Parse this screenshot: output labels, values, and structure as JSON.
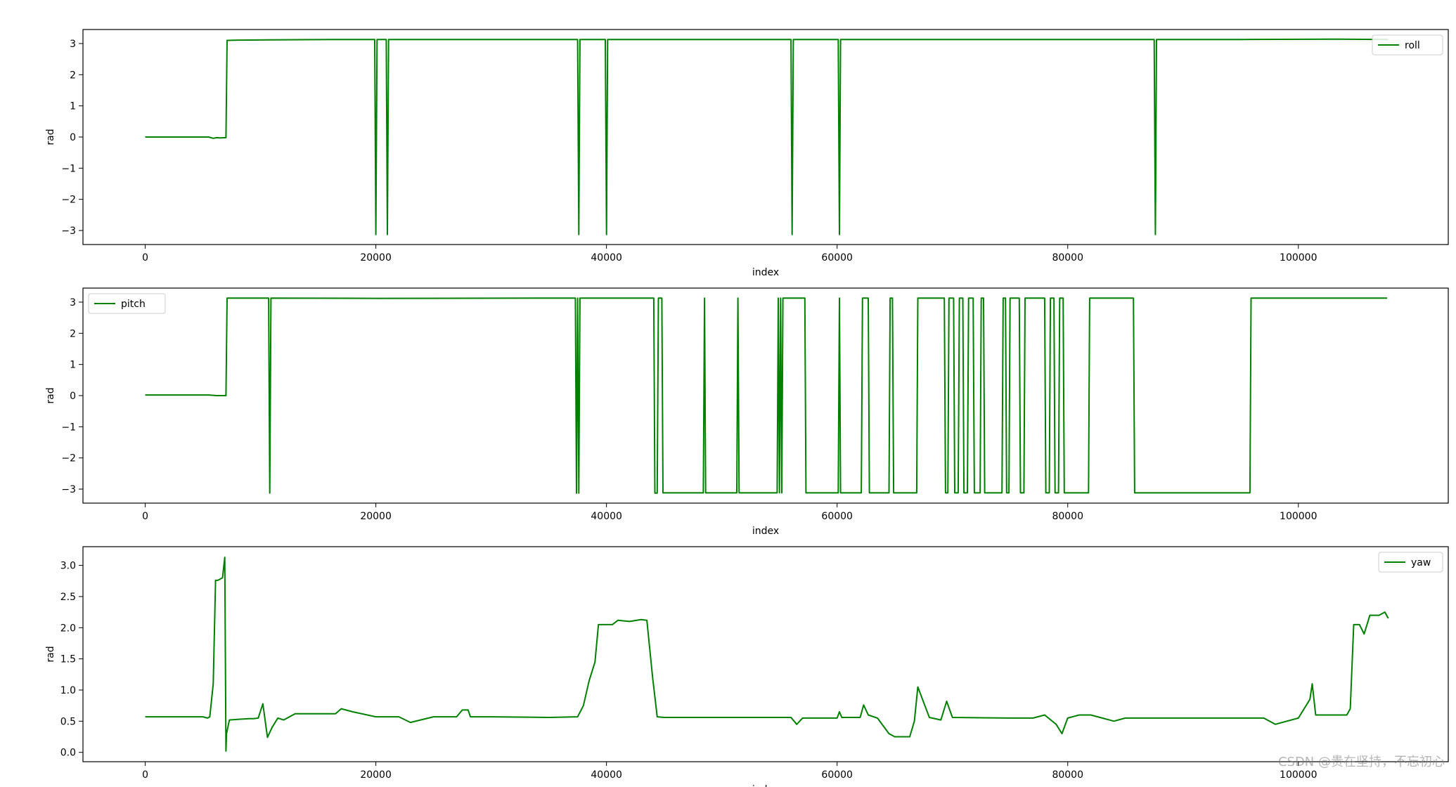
{
  "watermark": "CSDN @贵在坚持，不忘初心",
  "line_color": "#008000",
  "chart_data": [
    {
      "type": "line",
      "xlabel": "index",
      "ylabel": "rad",
      "xlim": [
        -5400,
        113000
      ],
      "ylim": [
        -3.45,
        3.45
      ],
      "xticks": [
        0,
        20000,
        40000,
        60000,
        80000,
        100000
      ],
      "yticks": [
        -3,
        -2,
        -1,
        0,
        1,
        2,
        3
      ],
      "yticklabels": [
        "−3",
        "−2",
        "−1",
        "0",
        "1",
        "2",
        "3"
      ],
      "legend_position": "upper right",
      "series": [
        {
          "name": "roll",
          "x": [
            0,
            5500,
            5900,
            6200,
            6500,
            7000,
            7100,
            8000,
            12000,
            16000,
            19900,
            20000,
            20100,
            20900,
            21000,
            21100,
            28000,
            37500,
            37600,
            37700,
            39900,
            40000,
            40100,
            48000,
            56000,
            56100,
            56200,
            60100,
            60200,
            60300,
            70000,
            80000,
            87500,
            87600,
            87700,
            95000,
            103000,
            107800
          ],
          "y": [
            0.0,
            0.0,
            -0.04,
            -0.02,
            -0.03,
            -0.02,
            3.1,
            3.11,
            3.12,
            3.13,
            3.13,
            -3.13,
            3.13,
            3.13,
            -3.13,
            3.13,
            3.13,
            3.13,
            -3.13,
            3.13,
            3.13,
            -3.13,
            3.13,
            3.13,
            3.13,
            -3.13,
            3.13,
            3.13,
            -3.13,
            3.13,
            3.13,
            3.13,
            3.13,
            -3.13,
            3.13,
            3.13,
            3.14,
            3.13
          ]
        }
      ]
    },
    {
      "type": "line",
      "xlabel": "index",
      "ylabel": "rad",
      "xlim": [
        -5400,
        113000
      ],
      "ylim": [
        -3.45,
        3.45
      ],
      "xticks": [
        0,
        20000,
        40000,
        60000,
        80000,
        100000
      ],
      "yticks": [
        -3,
        -2,
        -1,
        0,
        1,
        2,
        3
      ],
      "yticklabels": [
        "−3",
        "−2",
        "−1",
        "0",
        "1",
        "2",
        "3"
      ],
      "legend_position": "upper left",
      "series": [
        {
          "name": "pitch",
          "x": [
            0,
            5500,
            6200,
            7000,
            7100,
            10700,
            10800,
            10900,
            20000,
            37300,
            37400,
            37500,
            37600,
            37700,
            37800,
            44100,
            44200,
            44400,
            44500,
            44800,
            44900,
            48400,
            48500,
            48600,
            51300,
            51400,
            51500,
            54800,
            54900,
            55000,
            55100,
            55200,
            55300,
            57200,
            57300,
            57400,
            60100,
            60200,
            60300,
            62100,
            62200,
            62700,
            62800,
            64500,
            64600,
            64800,
            64900,
            66900,
            67000,
            67100,
            69300,
            69400,
            69600,
            69700,
            70100,
            70200,
            70500,
            70600,
            70900,
            71000,
            71300,
            71400,
            71800,
            71900,
            72400,
            72500,
            72700,
            72800,
            74300,
            74400,
            74600,
            74700,
            74900,
            75000,
            75800,
            75900,
            76200,
            76300,
            78000,
            78100,
            78400,
            78500,
            78800,
            78900,
            79200,
            79300,
            79600,
            79700,
            81800,
            81900,
            82000,
            85700,
            85800,
            95800,
            95900,
            100000,
            107700
          ],
          "y": [
            0.02,
            0.02,
            0.0,
            0.0,
            3.13,
            3.13,
            -3.13,
            3.13,
            3.12,
            3.13,
            -3.13,
            3.13,
            -3.13,
            3.13,
            3.13,
            3.13,
            -3.13,
            -3.13,
            3.13,
            3.13,
            -3.12,
            -3.12,
            3.13,
            -3.12,
            -3.12,
            3.13,
            -3.12,
            -3.12,
            3.13,
            -3.12,
            3.13,
            -3.12,
            3.13,
            3.13,
            -3.12,
            -3.12,
            -3.12,
            3.13,
            -3.12,
            -3.12,
            3.13,
            3.13,
            -3.12,
            -3.12,
            3.13,
            3.13,
            -3.12,
            -3.12,
            3.13,
            3.13,
            3.13,
            -3.12,
            -3.12,
            3.13,
            3.13,
            -3.12,
            -3.12,
            3.13,
            3.13,
            -3.12,
            -3.12,
            3.13,
            3.13,
            -3.12,
            -3.12,
            3.13,
            3.13,
            -3.12,
            -3.12,
            3.13,
            3.13,
            -3.12,
            -3.12,
            3.13,
            3.13,
            -3.12,
            -3.12,
            3.13,
            3.13,
            -3.12,
            -3.12,
            3.13,
            3.13,
            -3.12,
            -3.12,
            3.13,
            3.13,
            -3.12,
            -3.12,
            3.13,
            3.13,
            3.13,
            -3.12,
            -3.12,
            3.13,
            3.13,
            3.13
          ]
        }
      ]
    },
    {
      "type": "line",
      "xlabel": "index",
      "ylabel": "rad",
      "xlim": [
        -5400,
        113000
      ],
      "ylim": [
        -0.15,
        3.3
      ],
      "xticks": [
        0,
        20000,
        40000,
        60000,
        80000,
        100000
      ],
      "yticks": [
        0.0,
        0.5,
        1.0,
        1.5,
        2.0,
        2.5,
        3.0
      ],
      "yticklabels": [
        "0.0",
        "0.5",
        "1.0",
        "1.5",
        "2.0",
        "2.5",
        "3.0"
      ],
      "legend_position": "upper right",
      "series": [
        {
          "name": "yaw",
          "x": [
            0,
            5000,
            5400,
            5600,
            5900,
            6100,
            6300,
            6700,
            6900,
            7000,
            7050,
            7300,
            8000,
            9000,
            9400,
            9800,
            10200,
            10600,
            11000,
            11500,
            12000,
            13000,
            15000,
            16500,
            17000,
            18000,
            20000,
            22000,
            23000,
            25000,
            27000,
            27500,
            28000,
            28200,
            30000,
            35000,
            37500,
            38000,
            38500,
            39000,
            39300,
            40000,
            40500,
            41000,
            42000,
            43000,
            43500,
            44000,
            44400,
            45000,
            50000,
            55000,
            56000,
            56500,
            57000,
            60000,
            60200,
            60400,
            62000,
            62300,
            62700,
            63500,
            64500,
            65000,
            66300,
            66700,
            67000,
            68000,
            69000,
            69500,
            70000,
            75000,
            77000,
            78000,
            79000,
            79500,
            80000,
            81000,
            82000,
            83000,
            84000,
            85000,
            90000,
            96000,
            97000,
            98000,
            99000,
            100000,
            101000,
            101200,
            101500,
            104200,
            104500,
            104800,
            105300,
            105700,
            106200,
            107000,
            107500,
            107800
          ],
          "y": [
            0.57,
            0.57,
            0.55,
            0.57,
            1.1,
            2.76,
            2.76,
            2.8,
            3.13,
            0.02,
            0.3,
            0.52,
            0.53,
            0.54,
            0.54,
            0.55,
            0.78,
            0.24,
            0.4,
            0.55,
            0.52,
            0.62,
            0.62,
            0.62,
            0.7,
            0.65,
            0.57,
            0.57,
            0.48,
            0.57,
            0.57,
            0.68,
            0.68,
            0.57,
            0.57,
            0.56,
            0.57,
            0.75,
            1.15,
            1.45,
            2.05,
            2.05,
            2.05,
            2.12,
            2.1,
            2.13,
            2.12,
            1.2,
            0.57,
            0.56,
            0.56,
            0.56,
            0.56,
            0.45,
            0.55,
            0.55,
            0.65,
            0.56,
            0.56,
            0.76,
            0.6,
            0.55,
            0.3,
            0.25,
            0.25,
            0.5,
            1.05,
            0.56,
            0.52,
            0.82,
            0.56,
            0.55,
            0.55,
            0.6,
            0.45,
            0.3,
            0.55,
            0.6,
            0.6,
            0.55,
            0.5,
            0.55,
            0.55,
            0.55,
            0.55,
            0.45,
            0.5,
            0.55,
            0.85,
            1.1,
            0.6,
            0.6,
            0.7,
            2.05,
            2.05,
            1.9,
            2.2,
            2.2,
            2.25,
            2.15
          ]
        }
      ]
    }
  ]
}
